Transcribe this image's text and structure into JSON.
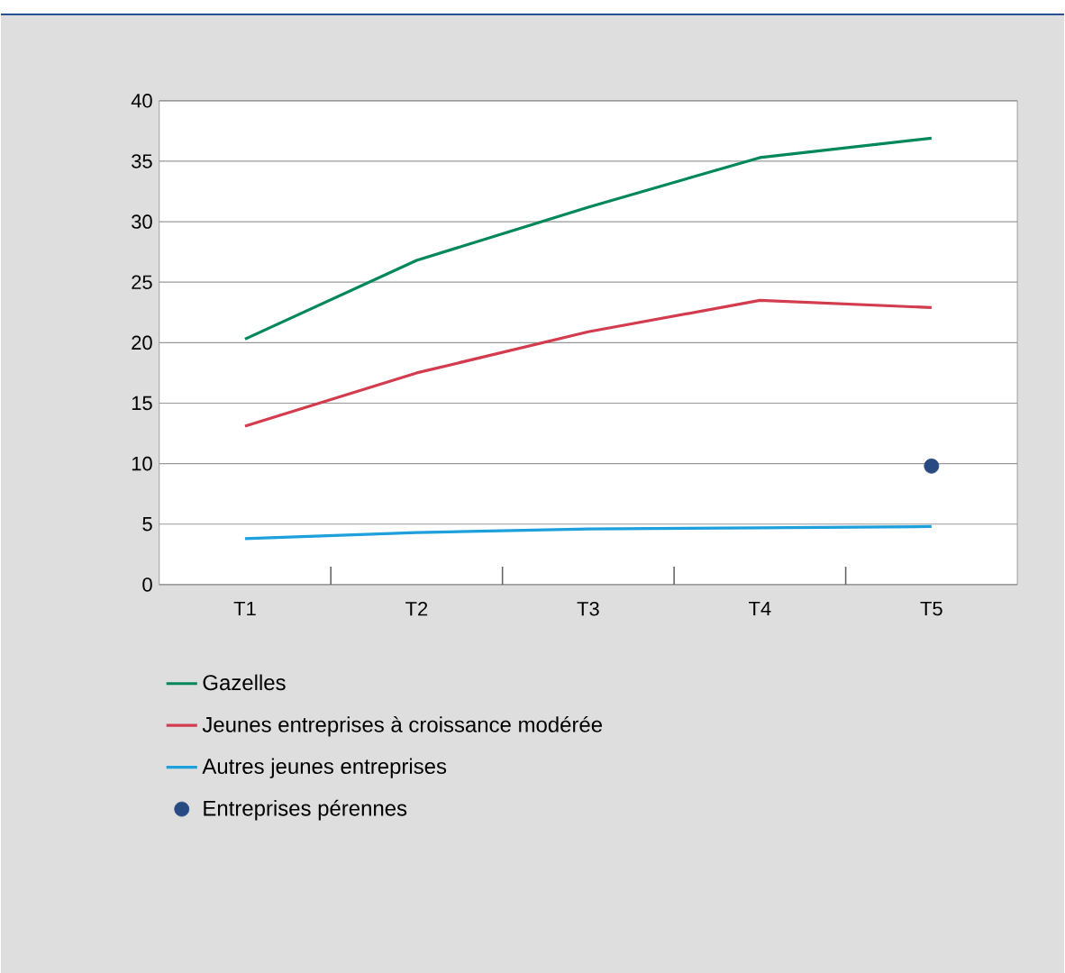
{
  "chart_data": {
    "type": "line",
    "categories": [
      "T1",
      "T2",
      "T3",
      "T4",
      "T5"
    ],
    "series": [
      {
        "name": "Gazelles",
        "color": "#00875a",
        "values": [
          20.3,
          26.8,
          31.2,
          35.3,
          36.9
        ]
      },
      {
        "name": "Jeunes entreprises à croissance modérée",
        "color": "#d23c4e",
        "values": [
          13.1,
          17.5,
          20.9,
          23.5,
          22.9
        ]
      },
      {
        "name": "Autres jeunes entreprises",
        "color": "#1ea0dc",
        "values": [
          3.8,
          4.3,
          4.6,
          4.7,
          4.8
        ]
      },
      {
        "name": "Entreprises pérennes",
        "color": "#274a82",
        "type": "scatter",
        "values": [
          null,
          null,
          null,
          null,
          9.8
        ]
      }
    ],
    "ylim": [
      0,
      40
    ],
    "yticks": [
      0,
      5,
      10,
      15,
      20,
      25,
      30,
      35,
      40
    ],
    "grid": "y",
    "legend": "bottom",
    "line_style": "solid"
  }
}
